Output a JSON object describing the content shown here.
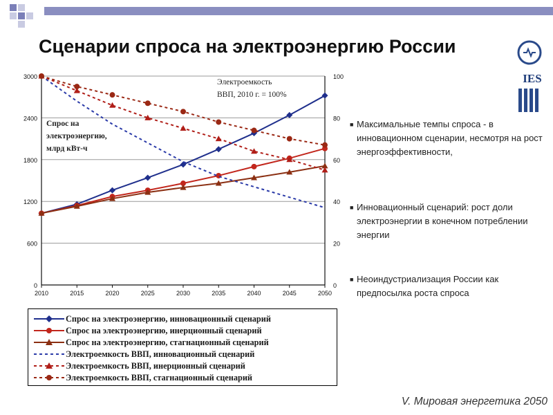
{
  "slide": {
    "title": "Сценарии спроса на электроэнергию России",
    "logo_text": "IES",
    "footer": "V. Мировая энергетика 2050",
    "colors": {
      "title_bar": "#8a8ec0",
      "square_dark": "#7b7fb8",
      "square_light": "#c9cbe2",
      "innovation": "#1f2f8c",
      "inertial": "#c2261c",
      "stagnation": "#8b2f12",
      "gdp_innovation": "#2a3aa8",
      "gdp_inertial": "#b01e18",
      "gdp_stagnation": "#9a2814"
    }
  },
  "bullets": [
    "Максимальные темпы спроса - в инновационном сценарии, несмотря на рост энергоэффективности,",
    "Инновационный сценарий: рост доли электроэнергии в конечном потреблении энергии",
    "Неоиндустриализация России как предпосылка роста спроса"
  ],
  "chart_data": {
    "type": "line",
    "x": [
      2010,
      2015,
      2020,
      2025,
      2030,
      2035,
      2040,
      2045,
      2050
    ],
    "xlim": [
      2010,
      2050
    ],
    "y_left": {
      "ylim": [
        0,
        3000
      ],
      "ticks": [
        0,
        600,
        1200,
        1800,
        2400,
        3000
      ]
    },
    "y_right": {
      "ylim": [
        0,
        100
      ],
      "ticks": [
        0,
        20,
        40,
        60,
        80,
        100
      ]
    },
    "grid": "horizontal",
    "annotations": {
      "left": "Спрос на электроэнергию, млрд кВт-ч",
      "right": "Электроемкость ВВП, 2010 г. = 100%"
    },
    "series": [
      {
        "name": "Спрос на электроэнергию, инновационный сценарий",
        "axis": "left",
        "style": "solid",
        "marker": "diamond",
        "color": "#1f2f8c",
        "values": [
          1030,
          1160,
          1360,
          1540,
          1730,
          1950,
          2180,
          2440,
          2720
        ]
      },
      {
        "name": "Спрос на электроэнергию, инерционный сценарий",
        "axis": "left",
        "style": "solid",
        "marker": "circle",
        "color": "#c2261c",
        "values": [
          1030,
          1140,
          1270,
          1360,
          1460,
          1570,
          1700,
          1820,
          1960
        ]
      },
      {
        "name": "Спрос на электроэнергию, стагнационный сценарий",
        "axis": "left",
        "style": "solid",
        "marker": "triangle",
        "color": "#8b2f12",
        "values": [
          1030,
          1130,
          1240,
          1330,
          1400,
          1460,
          1540,
          1620,
          1710
        ]
      },
      {
        "name": "Электроемкость ВВП, инновационный сценарий",
        "axis": "right",
        "style": "dotted",
        "marker": "none",
        "color": "#2a3aa8",
        "values": [
          100,
          88,
          77,
          68,
          59,
          52,
          47,
          42,
          37
        ]
      },
      {
        "name": "Электроемкость ВВП, инерционный сценарий",
        "axis": "right",
        "style": "dotted",
        "marker": "triangle",
        "color": "#b01e18",
        "values": [
          100,
          93,
          86,
          80,
          75,
          70,
          64,
          60,
          55
        ]
      },
      {
        "name": "Электроемкость ВВП, стагнационный сценарий",
        "axis": "right",
        "style": "dotted",
        "marker": "circle",
        "color": "#9a2814",
        "values": [
          100,
          95,
          91,
          87,
          83,
          78,
          74,
          70,
          67
        ]
      }
    ]
  }
}
